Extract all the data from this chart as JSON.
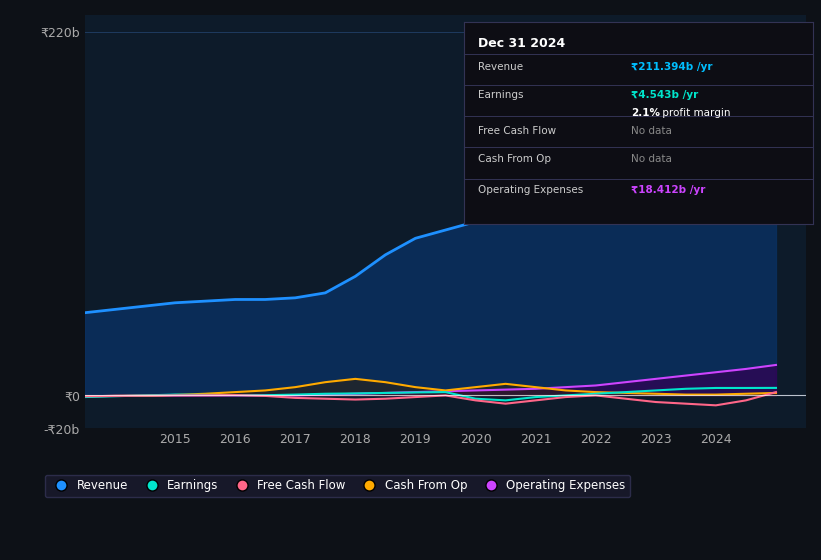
{
  "bg_color": "#0d1117",
  "plot_bg_color": "#0d1b2a",
  "grid_color": "#1e3a5f",
  "title_box": {
    "date": "Dec 31 2024",
    "rows": [
      {
        "label": "Revenue",
        "value": "₹211.394b /yr",
        "value_color": "#00bfff",
        "nodata": false
      },
      {
        "label": "Earnings",
        "value": "₹4.543b /yr",
        "value_color": "#00e5cc",
        "nodata": false
      },
      {
        "label": "",
        "value": "2.1% profit margin",
        "value_color": "#ffffff",
        "nodata": false,
        "bold_part": "2.1%"
      },
      {
        "label": "Free Cash Flow",
        "value": "No data",
        "value_color": "#888888",
        "nodata": true
      },
      {
        "label": "Cash From Op",
        "value": "No data",
        "value_color": "#888888",
        "nodata": true
      },
      {
        "label": "Operating Expenses",
        "value": "₹18.412b /yr",
        "value_color": "#cc44ff",
        "nodata": false
      }
    ]
  },
  "ylim": [
    -20,
    230
  ],
  "yticks": [
    -20,
    0,
    220
  ],
  "ytick_labels": [
    "-₹20b",
    "₹0",
    "₹220b"
  ],
  "xticks": [
    2015,
    2016,
    2017,
    2018,
    2019,
    2020,
    2021,
    2022,
    2023,
    2024
  ],
  "xmin": 2013.5,
  "xmax": 2025.5,
  "revenue": {
    "x": [
      2013.5,
      2014.0,
      2014.5,
      2015.0,
      2015.5,
      2016.0,
      2016.5,
      2017.0,
      2017.5,
      2018.0,
      2018.5,
      2019.0,
      2019.5,
      2020.0,
      2020.5,
      2021.0,
      2021.5,
      2022.0,
      2022.5,
      2023.0,
      2023.5,
      2024.0,
      2024.5,
      2025.0
    ],
    "y": [
      50,
      52,
      54,
      56,
      57,
      58,
      58,
      59,
      62,
      72,
      85,
      95,
      100,
      105,
      110,
      118,
      128,
      135,
      140,
      148,
      155,
      168,
      195,
      211
    ],
    "color": "#1e90ff",
    "fill_color": "#0a3060",
    "linewidth": 2.0
  },
  "earnings": {
    "x": [
      2013.5,
      2014.0,
      2014.5,
      2015.0,
      2015.5,
      2016.0,
      2016.5,
      2017.0,
      2017.5,
      2018.0,
      2018.5,
      2019.0,
      2019.5,
      2020.0,
      2020.5,
      2021.0,
      2021.5,
      2022.0,
      2022.5,
      2023.0,
      2023.5,
      2024.0,
      2024.5,
      2025.0
    ],
    "y": [
      -1,
      -0.5,
      0,
      0.5,
      0.3,
      0.2,
      0.1,
      0.5,
      1.0,
      1.2,
      1.5,
      1.8,
      2.0,
      -2,
      -3,
      -1,
      0,
      1,
      2,
      3,
      4,
      4.5,
      4.5,
      4.543
    ],
    "color": "#00e5cc",
    "linewidth": 1.5
  },
  "free_cash_flow": {
    "x": [
      2013.5,
      2014.0,
      2014.5,
      2015.0,
      2015.5,
      2016.0,
      2016.5,
      2017.0,
      2017.5,
      2018.0,
      2018.5,
      2019.0,
      2019.5,
      2020.0,
      2020.5,
      2021.0,
      2021.5,
      2022.0,
      2022.5,
      2023.0,
      2023.5,
      2024.0,
      2024.5,
      2025.0
    ],
    "y": [
      -0.5,
      -0.3,
      -0.2,
      0,
      0.1,
      0.2,
      -0.3,
      -1.5,
      -2.0,
      -2.5,
      -2.0,
      -1.0,
      0,
      -3,
      -5,
      -3,
      -1,
      0,
      -2,
      -4,
      -5,
      -6,
      -3,
      2
    ],
    "color": "#ff6688",
    "linewidth": 1.5
  },
  "cash_from_op": {
    "x": [
      2013.5,
      2014.0,
      2014.5,
      2015.0,
      2015.5,
      2016.0,
      2016.5,
      2017.0,
      2017.5,
      2018.0,
      2018.5,
      2019.0,
      2019.5,
      2020.0,
      2020.5,
      2021.0,
      2021.5,
      2022.0,
      2022.5,
      2023.0,
      2023.5,
      2024.0,
      2024.5,
      2025.0
    ],
    "y": [
      -0.5,
      -0.3,
      -0.2,
      0.3,
      1.0,
      2.0,
      3.0,
      5.0,
      8.0,
      10.0,
      8.0,
      5.0,
      3.0,
      5.0,
      7.0,
      5.0,
      3.0,
      2.0,
      1.5,
      1.0,
      0.5,
      0.5,
      1.0,
      1.5
    ],
    "color": "#ffaa00",
    "fill_color": "#33220a",
    "linewidth": 1.5
  },
  "op_expenses": {
    "x": [
      2013.5,
      2014.0,
      2014.5,
      2015.0,
      2015.5,
      2016.0,
      2016.5,
      2017.0,
      2017.5,
      2018.0,
      2018.5,
      2019.0,
      2019.5,
      2020.0,
      2020.5,
      2021.0,
      2021.5,
      2022.0,
      2022.5,
      2023.0,
      2023.5,
      2024.0,
      2024.5,
      2025.0
    ],
    "y": [
      -0.5,
      -0.3,
      -0.2,
      0,
      0,
      0,
      0,
      0,
      0.5,
      1.0,
      1.5,
      2.0,
      2.5,
      3.0,
      3.5,
      4.0,
      5.0,
      6.0,
      8.0,
      10.0,
      12.0,
      14.0,
      16.0,
      18.412
    ],
    "color": "#cc44ff",
    "fill_color": "#330055",
    "linewidth": 1.5
  },
  "legend": [
    {
      "label": "Revenue",
      "color": "#1e90ff"
    },
    {
      "label": "Earnings",
      "color": "#00e5cc"
    },
    {
      "label": "Free Cash Flow",
      "color": "#ff6688"
    },
    {
      "label": "Cash From Op",
      "color": "#ffaa00"
    },
    {
      "label": "Operating Expenses",
      "color": "#cc44ff"
    }
  ]
}
